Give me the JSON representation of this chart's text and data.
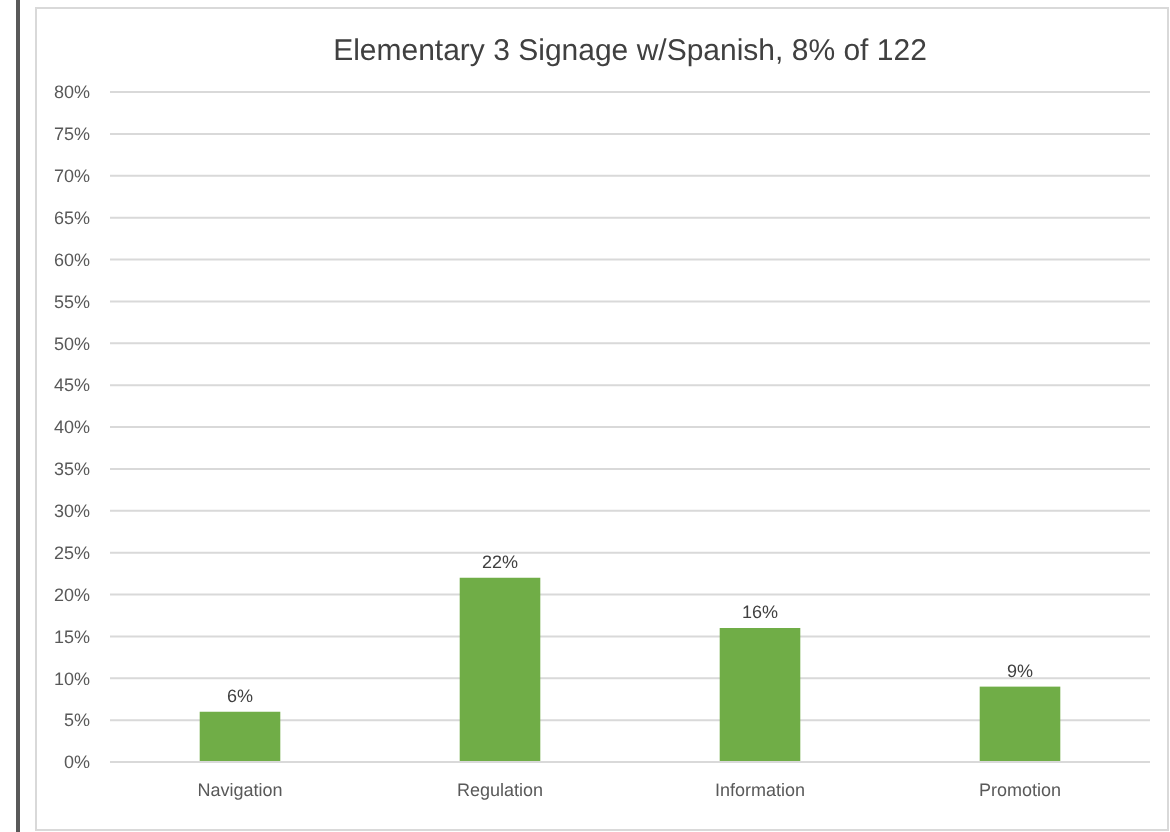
{
  "chart_data": {
    "type": "bar",
    "title": "Elementary 3 Signage w/Spanish, 8% of 122",
    "categories": [
      "Navigation",
      "Regulation",
      "Information",
      "Promotion"
    ],
    "values": [
      6,
      22,
      16,
      9
    ],
    "color": "#70ad47",
    "value_labels": [
      "6%",
      "22%",
      "16%",
      "9%"
    ],
    "ylim": [
      0,
      80
    ],
    "yticks": [
      {
        "value": 0,
        "label": "0%"
      },
      {
        "value": 5,
        "label": "5%"
      },
      {
        "value": 10,
        "label": "10%"
      },
      {
        "value": 15,
        "label": "15%"
      },
      {
        "value": 20,
        "label": "20%"
      },
      {
        "value": 25,
        "label": "25%"
      },
      {
        "value": 30,
        "label": "30%"
      },
      {
        "value": 35,
        "label": "35%"
      },
      {
        "value": 40,
        "label": "40%"
      },
      {
        "value": 45,
        "label": "45%"
      },
      {
        "value": 50,
        "label": "50%"
      },
      {
        "value": 55,
        "label": "55%"
      },
      {
        "value": 60,
        "label": "60%"
      },
      {
        "value": 65,
        "label": "65%"
      },
      {
        "value": 70,
        "label": "70%"
      },
      {
        "value": 75,
        "label": "75%"
      },
      {
        "value": 80,
        "label": "80%"
      }
    ],
    "grid": "y"
  }
}
